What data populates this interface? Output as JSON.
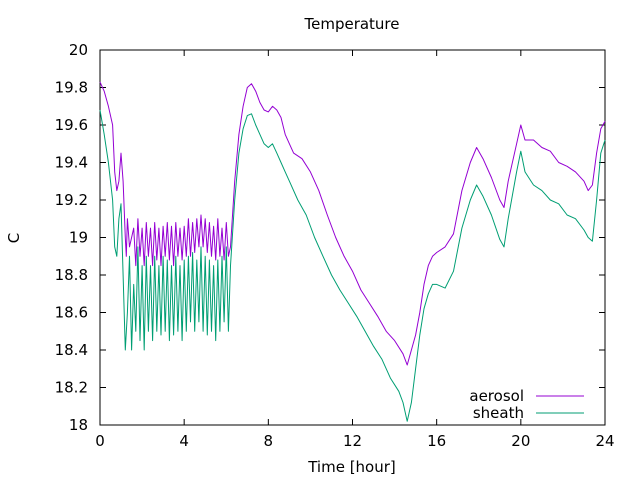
{
  "chart_data": {
    "type": "line",
    "title": "Temperature",
    "xlabel": "Time [hour]",
    "ylabel": "C",
    "xlim": [
      0,
      24
    ],
    "ylim": [
      18,
      20
    ],
    "xticks": [
      0,
      4,
      8,
      12,
      16,
      20,
      24
    ],
    "yticks": [
      18,
      18.2,
      18.4,
      18.6,
      18.8,
      19,
      19.2,
      19.4,
      19.6,
      19.8,
      20
    ],
    "grid": false,
    "legend_position": "bottom-right",
    "series": [
      {
        "name": "aerosol",
        "color": "#9400d3",
        "points": [
          [
            0,
            19.83
          ],
          [
            0.2,
            19.78
          ],
          [
            0.4,
            19.7
          ],
          [
            0.6,
            19.6
          ],
          [
            0.7,
            19.35
          ],
          [
            0.8,
            19.25
          ],
          [
            0.9,
            19.3
          ],
          [
            1.0,
            19.45
          ],
          [
            1.1,
            19.3
          ],
          [
            1.2,
            19.0
          ],
          [
            1.25,
            18.9
          ],
          [
            1.3,
            19.1
          ],
          [
            1.4,
            18.95
          ],
          [
            1.6,
            19.05
          ],
          [
            1.7,
            18.85
          ],
          [
            1.8,
            19.1
          ],
          [
            1.9,
            18.9
          ],
          [
            2.0,
            19.05
          ],
          [
            2.1,
            18.85
          ],
          [
            2.2,
            19.08
          ],
          [
            2.3,
            18.9
          ],
          [
            2.4,
            19.05
          ],
          [
            2.5,
            18.85
          ],
          [
            2.6,
            19.08
          ],
          [
            2.7,
            18.88
          ],
          [
            2.8,
            19.05
          ],
          [
            2.9,
            18.85
          ],
          [
            3.0,
            19.06
          ],
          [
            3.1,
            18.9
          ],
          [
            3.2,
            19.08
          ],
          [
            3.3,
            18.88
          ],
          [
            3.4,
            19.06
          ],
          [
            3.5,
            18.85
          ],
          [
            3.6,
            19.08
          ],
          [
            3.7,
            18.9
          ],
          [
            3.8,
            19.05
          ],
          [
            3.9,
            18.88
          ],
          [
            4.0,
            19.06
          ],
          [
            4.1,
            18.9
          ],
          [
            4.2,
            19.1
          ],
          [
            4.3,
            18.9
          ],
          [
            4.4,
            19.08
          ],
          [
            4.5,
            18.92
          ],
          [
            4.6,
            19.1
          ],
          [
            4.7,
            18.95
          ],
          [
            4.8,
            19.12
          ],
          [
            4.9,
            18.95
          ],
          [
            5.0,
            19.1
          ],
          [
            5.1,
            18.92
          ],
          [
            5.2,
            19.08
          ],
          [
            5.3,
            18.9
          ],
          [
            5.4,
            19.06
          ],
          [
            5.5,
            18.88
          ],
          [
            5.6,
            19.1
          ],
          [
            5.7,
            18.9
          ],
          [
            5.8,
            19.05
          ],
          [
            5.9,
            18.88
          ],
          [
            6.0,
            19.08
          ],
          [
            6.1,
            18.9
          ],
          [
            6.2,
            18.95
          ],
          [
            6.4,
            19.3
          ],
          [
            6.6,
            19.55
          ],
          [
            6.8,
            19.7
          ],
          [
            7.0,
            19.8
          ],
          [
            7.2,
            19.82
          ],
          [
            7.4,
            19.78
          ],
          [
            7.6,
            19.72
          ],
          [
            7.8,
            19.68
          ],
          [
            8.0,
            19.67
          ],
          [
            8.2,
            19.7
          ],
          [
            8.4,
            19.68
          ],
          [
            8.6,
            19.64
          ],
          [
            8.8,
            19.55
          ],
          [
            9.0,
            19.5
          ],
          [
            9.2,
            19.45
          ],
          [
            9.6,
            19.42
          ],
          [
            10.0,
            19.35
          ],
          [
            10.4,
            19.25
          ],
          [
            10.8,
            19.12
          ],
          [
            11.2,
            19.0
          ],
          [
            11.6,
            18.9
          ],
          [
            12.0,
            18.82
          ],
          [
            12.4,
            18.72
          ],
          [
            12.8,
            18.65
          ],
          [
            13.2,
            18.58
          ],
          [
            13.6,
            18.5
          ],
          [
            14.0,
            18.45
          ],
          [
            14.4,
            18.38
          ],
          [
            14.6,
            18.32
          ],
          [
            14.8,
            18.4
          ],
          [
            15.0,
            18.48
          ],
          [
            15.2,
            18.6
          ],
          [
            15.4,
            18.75
          ],
          [
            15.6,
            18.85
          ],
          [
            15.8,
            18.9
          ],
          [
            16.0,
            18.92
          ],
          [
            16.4,
            18.95
          ],
          [
            16.8,
            19.02
          ],
          [
            17.2,
            19.25
          ],
          [
            17.6,
            19.4
          ],
          [
            17.9,
            19.48
          ],
          [
            18.2,
            19.42
          ],
          [
            18.6,
            19.32
          ],
          [
            19.0,
            19.2
          ],
          [
            19.2,
            19.16
          ],
          [
            19.4,
            19.3
          ],
          [
            19.8,
            19.5
          ],
          [
            20.0,
            19.6
          ],
          [
            20.2,
            19.52
          ],
          [
            20.6,
            19.52
          ],
          [
            21.0,
            19.48
          ],
          [
            21.4,
            19.46
          ],
          [
            21.8,
            19.4
          ],
          [
            22.2,
            19.38
          ],
          [
            22.6,
            19.35
          ],
          [
            23.0,
            19.3
          ],
          [
            23.2,
            19.25
          ],
          [
            23.4,
            19.28
          ],
          [
            23.6,
            19.45
          ],
          [
            23.8,
            19.58
          ],
          [
            24.0,
            19.62
          ]
        ]
      },
      {
        "name": "sheath",
        "color": "#009e73",
        "points": [
          [
            0,
            19.68
          ],
          [
            0.2,
            19.55
          ],
          [
            0.4,
            19.4
          ],
          [
            0.6,
            19.2
          ],
          [
            0.7,
            18.95
          ],
          [
            0.8,
            18.9
          ],
          [
            0.9,
            19.1
          ],
          [
            1.0,
            19.18
          ],
          [
            1.1,
            18.8
          ],
          [
            1.2,
            18.4
          ],
          [
            1.3,
            18.6
          ],
          [
            1.4,
            18.9
          ],
          [
            1.5,
            18.4
          ],
          [
            1.6,
            18.75
          ],
          [
            1.7,
            18.5
          ],
          [
            1.8,
            18.95
          ],
          [
            1.9,
            18.45
          ],
          [
            2.0,
            18.85
          ],
          [
            2.1,
            18.4
          ],
          [
            2.2,
            18.9
          ],
          [
            2.3,
            18.5
          ],
          [
            2.4,
            18.85
          ],
          [
            2.5,
            18.45
          ],
          [
            2.6,
            18.9
          ],
          [
            2.7,
            18.5
          ],
          [
            2.8,
            18.85
          ],
          [
            2.9,
            18.48
          ],
          [
            3.0,
            18.9
          ],
          [
            3.1,
            18.5
          ],
          [
            3.2,
            18.88
          ],
          [
            3.3,
            18.45
          ],
          [
            3.4,
            18.85
          ],
          [
            3.5,
            18.48
          ],
          [
            3.6,
            18.9
          ],
          [
            3.7,
            18.5
          ],
          [
            3.8,
            18.85
          ],
          [
            3.9,
            18.45
          ],
          [
            4.0,
            18.88
          ],
          [
            4.1,
            18.5
          ],
          [
            4.2,
            18.9
          ],
          [
            4.3,
            18.55
          ],
          [
            4.4,
            18.92
          ],
          [
            4.5,
            18.5
          ],
          [
            4.6,
            18.88
          ],
          [
            4.7,
            18.55
          ],
          [
            4.8,
            18.95
          ],
          [
            4.9,
            18.5
          ],
          [
            5.0,
            18.9
          ],
          [
            5.1,
            18.48
          ],
          [
            5.2,
            18.88
          ],
          [
            5.3,
            18.5
          ],
          [
            5.4,
            18.85
          ],
          [
            5.5,
            18.45
          ],
          [
            5.6,
            18.88
          ],
          [
            5.7,
            18.5
          ],
          [
            5.8,
            18.9
          ],
          [
            5.9,
            18.55
          ],
          [
            6.0,
            18.95
          ],
          [
            6.1,
            18.5
          ],
          [
            6.2,
            18.85
          ],
          [
            6.4,
            19.2
          ],
          [
            6.6,
            19.45
          ],
          [
            6.8,
            19.58
          ],
          [
            7.0,
            19.65
          ],
          [
            7.2,
            19.66
          ],
          [
            7.4,
            19.6
          ],
          [
            7.6,
            19.55
          ],
          [
            7.8,
            19.5
          ],
          [
            8.0,
            19.48
          ],
          [
            8.2,
            19.5
          ],
          [
            8.4,
            19.45
          ],
          [
            8.6,
            19.4
          ],
          [
            8.8,
            19.35
          ],
          [
            9.0,
            19.3
          ],
          [
            9.4,
            19.2
          ],
          [
            9.8,
            19.12
          ],
          [
            10.2,
            19.0
          ],
          [
            10.6,
            18.9
          ],
          [
            11.0,
            18.8
          ],
          [
            11.4,
            18.72
          ],
          [
            11.8,
            18.65
          ],
          [
            12.2,
            18.58
          ],
          [
            12.6,
            18.5
          ],
          [
            13.0,
            18.42
          ],
          [
            13.4,
            18.35
          ],
          [
            13.8,
            18.25
          ],
          [
            14.2,
            18.18
          ],
          [
            14.4,
            18.12
          ],
          [
            14.6,
            18.02
          ],
          [
            14.8,
            18.12
          ],
          [
            15.0,
            18.3
          ],
          [
            15.2,
            18.48
          ],
          [
            15.4,
            18.62
          ],
          [
            15.6,
            18.7
          ],
          [
            15.8,
            18.75
          ],
          [
            16.0,
            18.75
          ],
          [
            16.4,
            18.73
          ],
          [
            16.8,
            18.82
          ],
          [
            17.2,
            19.05
          ],
          [
            17.6,
            19.2
          ],
          [
            17.9,
            19.28
          ],
          [
            18.2,
            19.22
          ],
          [
            18.6,
            19.12
          ],
          [
            19.0,
            18.99
          ],
          [
            19.2,
            18.95
          ],
          [
            19.4,
            19.1
          ],
          [
            19.8,
            19.35
          ],
          [
            20.0,
            19.46
          ],
          [
            20.2,
            19.35
          ],
          [
            20.6,
            19.28
          ],
          [
            21.0,
            19.25
          ],
          [
            21.4,
            19.2
          ],
          [
            21.8,
            19.18
          ],
          [
            22.2,
            19.12
          ],
          [
            22.6,
            19.1
          ],
          [
            23.0,
            19.04
          ],
          [
            23.2,
            19.0
          ],
          [
            23.4,
            18.98
          ],
          [
            23.6,
            19.2
          ],
          [
            23.8,
            19.45
          ],
          [
            24.0,
            19.52
          ]
        ]
      }
    ]
  }
}
